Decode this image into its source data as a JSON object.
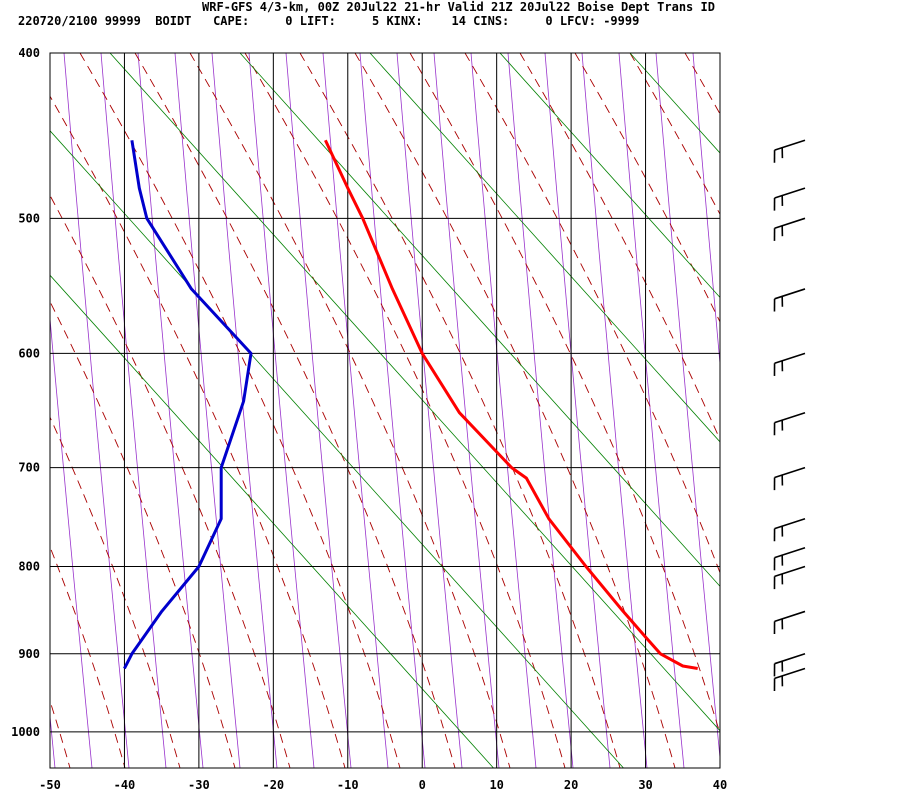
{
  "header": {
    "line1": "WRF-GFS 4/3-km, 00Z 20Jul22 21-hr Valid 21Z 20Jul22 Boise Dept Trans ID",
    "line2": "220720/2100 99999  BOIDT   CAPE:     0 LIFT:     5 KINX:    14 CINS:     0 LFCV: -9999"
  },
  "chart_data": {
    "type": "line",
    "diagram": "skew-t log-p",
    "y_axis": {
      "scale": "log",
      "reversed": true,
      "range": [
        400,
        1050
      ],
      "ticks": [
        400,
        500,
        600,
        700,
        800,
        900,
        1000
      ]
    },
    "x_axis": {
      "range": [
        -50,
        40
      ],
      "ticks": [
        -50,
        -40,
        -30,
        -20,
        -10,
        0,
        10,
        20,
        30,
        40
      ]
    },
    "grid": true,
    "series": [
      {
        "color": "#ff0000",
        "points": [
          [
            450,
            -13
          ],
          [
            480,
            -10
          ],
          [
            500,
            -8
          ],
          [
            550,
            -4
          ],
          [
            600,
            0
          ],
          [
            650,
            5
          ],
          [
            700,
            12
          ],
          [
            710,
            14
          ],
          [
            750,
            17
          ],
          [
            800,
            22
          ],
          [
            850,
            27
          ],
          [
            880,
            30
          ],
          [
            900,
            32
          ],
          [
            915,
            35
          ],
          [
            918,
            37
          ]
        ]
      },
      {
        "color": "#0000cc",
        "points": [
          [
            450,
            -39
          ],
          [
            480,
            -38
          ],
          [
            500,
            -37
          ],
          [
            550,
            -31
          ],
          [
            600,
            -23
          ],
          [
            640,
            -24
          ],
          [
            700,
            -27
          ],
          [
            750,
            -27
          ],
          [
            800,
            -30
          ],
          [
            850,
            -35
          ],
          [
            900,
            -39
          ],
          [
            918,
            -40
          ]
        ]
      }
    ],
    "wind_barbs": {
      "color": "#000000",
      "pressures": [
        450,
        480,
        500,
        550,
        600,
        650,
        700,
        750,
        780,
        800,
        850,
        900,
        918
      ]
    },
    "reference_lines": {
      "isotherm_color": "#000000",
      "dry_adiabat_color": "#008000",
      "moist_adiabat_color": "#aa0000",
      "mixing_ratio_color": "#9933cc"
    }
  }
}
